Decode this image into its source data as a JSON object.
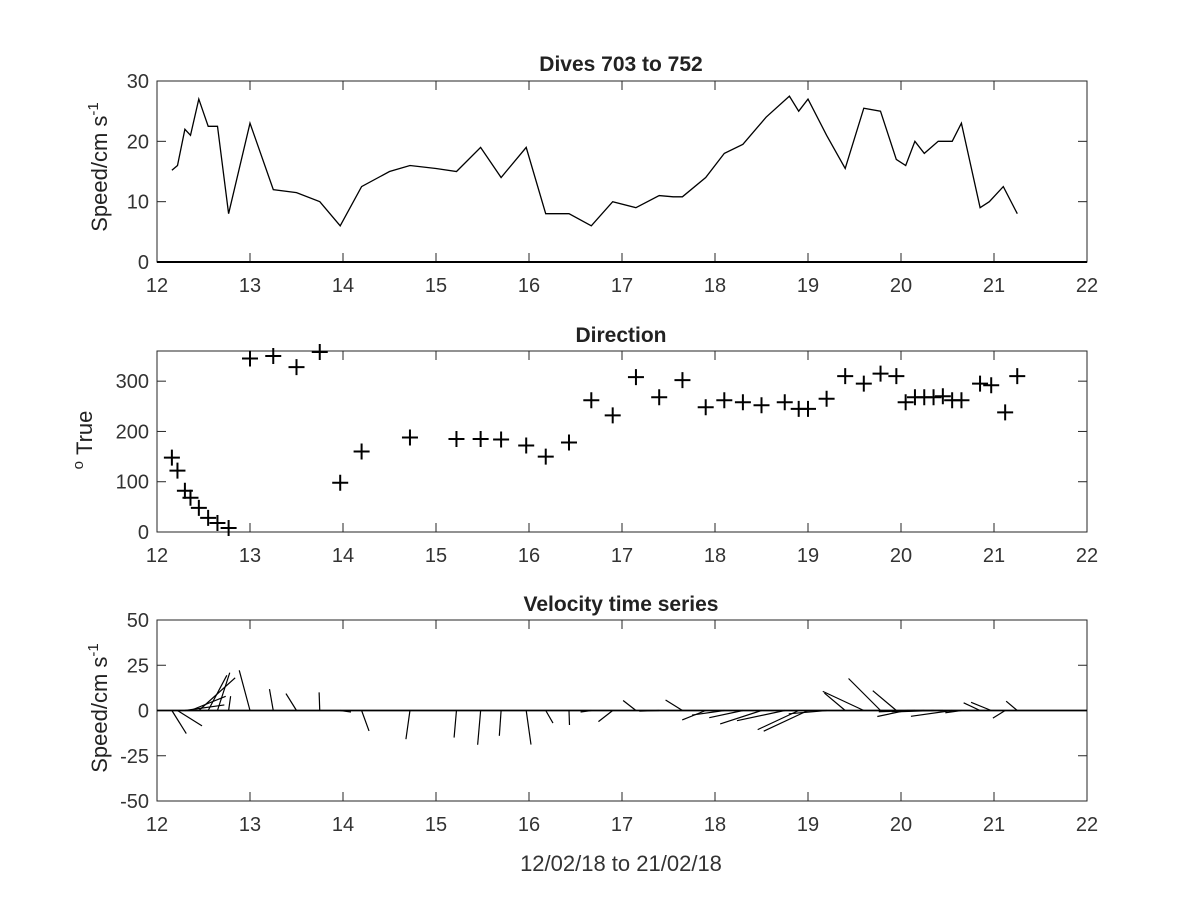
{
  "chart_data": [
    {
      "type": "line",
      "title": "Dives 703 to 752",
      "ylabel": "Speed/cm s",
      "ylabel_sup": "-1",
      "xlim": [
        12,
        22
      ],
      "ylim": [
        0,
        30
      ],
      "xticks": [
        12,
        13,
        14,
        15,
        16,
        17,
        18,
        19,
        20,
        21,
        22
      ],
      "yticks": [
        0,
        10,
        20,
        30
      ],
      "grid": false,
      "series": [
        {
          "x": [
            12.16,
            12.22,
            12.3,
            12.36,
            12.45,
            12.55,
            12.65,
            12.77,
            13.0,
            13.25,
            13.5,
            13.75,
            13.97,
            14.2,
            14.5,
            14.72,
            15.0,
            15.22,
            15.48,
            15.7,
            15.97,
            16.18,
            16.43,
            16.67,
            16.9,
            17.15,
            17.4,
            17.55,
            17.65,
            17.9,
            18.1,
            18.3,
            18.55,
            18.8,
            18.9,
            19.0,
            19.2,
            19.4,
            19.6,
            19.78,
            19.95,
            20.05,
            20.15,
            20.25,
            20.4,
            20.55,
            20.65,
            20.85,
            20.95,
            21.1,
            21.25
          ],
          "y": [
            15.2,
            16,
            22,
            21,
            27,
            22.5,
            22.5,
            8,
            23,
            12,
            11.5,
            10,
            6,
            12.5,
            15,
            16,
            15.5,
            15,
            19,
            14,
            19,
            8,
            8,
            6,
            10,
            9,
            11,
            10.8,
            10.8,
            14,
            18,
            19.5,
            24,
            27.5,
            25,
            27,
            21,
            15.5,
            25.5,
            25,
            17,
            16,
            20,
            18,
            20,
            20,
            23,
            9,
            10,
            12.5,
            8
          ]
        }
      ]
    },
    {
      "type": "scatter",
      "title": "Direction",
      "ylabel": "True",
      "ylabel_sup": "o",
      "xlim": [
        12,
        22
      ],
      "ylim": [
        0,
        360
      ],
      "xticks": [
        12,
        13,
        14,
        15,
        16,
        17,
        18,
        19,
        20,
        21,
        22
      ],
      "yticks": [
        0,
        100,
        200,
        300
      ],
      "grid": false,
      "marker": "+",
      "series": [
        {
          "x": [
            12.16,
            12.22,
            12.3,
            12.36,
            12.45,
            12.55,
            12.65,
            12.77,
            13.0,
            13.25,
            13.5,
            13.75,
            13.97,
            14.2,
            14.72,
            15.22,
            15.48,
            15.7,
            15.97,
            16.18,
            16.43,
            16.67,
            16.9,
            17.15,
            17.4,
            17.65,
            17.9,
            18.1,
            18.3,
            18.5,
            18.75,
            18.9,
            19.0,
            19.2,
            19.4,
            19.6,
            19.78,
            19.95,
            20.05,
            20.15,
            20.25,
            20.35,
            20.45,
            20.55,
            20.65,
            20.85,
            20.97,
            21.12,
            21.25
          ],
          "y": [
            148,
            122,
            82,
            68,
            48,
            28,
            18,
            8,
            345,
            350,
            328,
            358,
            98,
            160,
            188,
            185,
            185,
            184,
            172,
            150,
            178,
            262,
            232,
            308,
            268,
            302,
            248,
            262,
            258,
            252,
            258,
            245,
            245,
            265,
            310,
            295,
            315,
            310,
            258,
            268,
            268,
            268,
            270,
            262,
            262,
            295,
            292,
            238,
            310
          ]
        }
      ]
    },
    {
      "type": "line",
      "title": "Velocity time series",
      "ylabel": "Speed/cm s",
      "ylabel_sup": "-1",
      "xlabel": "12/02/18 to 21/02/18",
      "xlim": [
        12,
        22
      ],
      "ylim": [
        -50,
        50
      ],
      "xticks": [
        12,
        13,
        14,
        15,
        16,
        17,
        18,
        19,
        20,
        21,
        22
      ],
      "yticks": [
        -50,
        -25,
        0,
        25,
        50
      ],
      "grid": false,
      "stick_vectors": {
        "x": [
          12.16,
          12.22,
          12.3,
          12.36,
          12.45,
          12.55,
          12.65,
          12.77,
          13.0,
          13.25,
          13.5,
          13.75,
          13.97,
          14.2,
          14.72,
          15.22,
          15.48,
          15.7,
          15.97,
          16.18,
          16.43,
          16.67,
          16.9,
          17.15,
          17.4,
          17.65,
          17.9,
          18.1,
          18.3,
          18.5,
          18.75,
          18.9,
          19.0,
          19.2,
          19.4,
          19.6,
          19.78,
          19.95,
          20.05,
          20.15,
          20.25,
          20.35,
          20.45,
          20.55,
          20.65,
          20.85,
          20.97,
          21.12,
          21.25
        ],
        "speed": [
          15,
          16,
          22,
          21,
          27,
          22,
          22,
          8,
          23,
          12,
          11,
          10,
          6,
          12,
          16,
          15,
          19,
          14,
          19,
          8,
          8,
          6,
          10,
          9,
          11,
          11,
          14,
          18,
          19,
          24,
          27,
          25,
          27,
          21,
          15,
          25,
          25,
          17,
          16,
          20,
          18,
          20,
          20,
          23,
          9,
          10,
          12,
          8,
          8
        ],
        "direction": [
          148,
          122,
          82,
          68,
          48,
          28,
          18,
          8,
          345,
          350,
          328,
          358,
          98,
          160,
          188,
          185,
          185,
          184,
          172,
          150,
          178,
          262,
          232,
          308,
          268,
          302,
          248,
          262,
          258,
          252,
          258,
          245,
          245,
          265,
          310,
          295,
          315,
          310,
          258,
          268,
          268,
          268,
          270,
          262,
          262,
          295,
          292,
          238,
          310
        ]
      }
    }
  ]
}
